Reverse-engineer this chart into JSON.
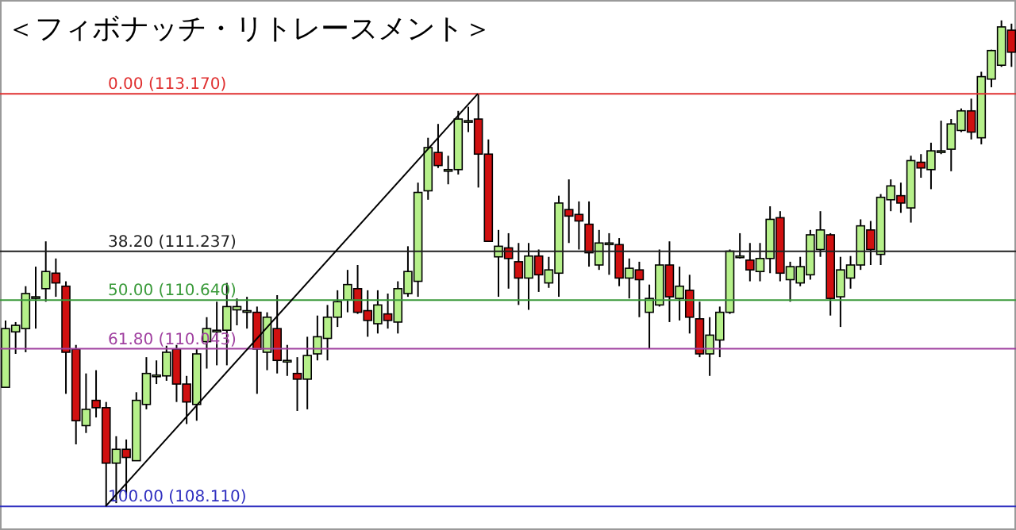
{
  "chart_data": {
    "type": "candlestick",
    "title": "＜フィボナッチ・リトレースメント＞",
    "categories": [
      null,
      null,
      null,
      null,
      null,
      null,
      null,
      null,
      null,
      null,
      null,
      null,
      null,
      null,
      null,
      null,
      null,
      null,
      null,
      null,
      null,
      null,
      null,
      null,
      null,
      null,
      null,
      null,
      null,
      null,
      null,
      null,
      null,
      null,
      null,
      null,
      null,
      null,
      null,
      null,
      null,
      null,
      null,
      null,
      null,
      null,
      null,
      null,
      null,
      null,
      null,
      null,
      null,
      null,
      null,
      null,
      null,
      null,
      null,
      null,
      null,
      null,
      null,
      null,
      null,
      null,
      null,
      null,
      null,
      null,
      null,
      null,
      null,
      null,
      null,
      null,
      null,
      null,
      null,
      null,
      null,
      null,
      null,
      null,
      null,
      null,
      null,
      null,
      null,
      null,
      null,
      null,
      null,
      null,
      null,
      null,
      null,
      null,
      null,
      null,
      null
    ],
    "ohlc": [
      [
        109.57,
        110.39,
        109.57,
        110.29
      ],
      [
        110.25,
        110.37,
        109.98,
        110.33
      ],
      [
        110.29,
        110.81,
        110.0,
        110.72
      ],
      [
        110.68,
        111.05,
        110.29,
        110.68
      ],
      [
        110.78,
        111.36,
        110.62,
        110.99
      ],
      [
        110.97,
        111.15,
        110.68,
        110.85
      ],
      [
        110.81,
        110.87,
        109.49,
        110.0
      ],
      [
        110.04,
        110.09,
        108.87,
        109.16
      ],
      [
        109.1,
        109.74,
        109.01,
        109.3
      ],
      [
        109.41,
        109.78,
        109.2,
        109.32
      ],
      [
        109.32,
        109.39,
        108.11,
        108.64
      ],
      [
        108.64,
        108.97,
        108.15,
        108.81
      ],
      [
        108.81,
        108.93,
        108.25,
        108.71
      ],
      [
        108.67,
        109.51,
        108.67,
        109.41
      ],
      [
        109.36,
        109.94,
        109.3,
        109.74
      ],
      [
        109.71,
        109.9,
        109.61,
        109.72
      ],
      [
        109.71,
        110.08,
        109.65,
        110.0
      ],
      [
        110.04,
        110.09,
        109.39,
        109.61
      ],
      [
        109.61,
        109.71,
        109.12,
        109.39
      ],
      [
        109.36,
        110.04,
        109.16,
        109.98
      ],
      [
        110.13,
        110.43,
        109.8,
        110.29
      ],
      [
        110.27,
        110.62,
        109.84,
        110.27
      ],
      [
        110.27,
        110.85,
        109.84,
        110.56
      ],
      [
        110.52,
        110.66,
        110.33,
        110.56
      ],
      [
        110.51,
        110.68,
        110.29,
        110.51
      ],
      [
        110.49,
        110.56,
        109.49,
        110.04
      ],
      [
        110.0,
        110.49,
        109.78,
        110.43
      ],
      [
        110.29,
        110.7,
        109.74,
        109.9
      ],
      [
        109.9,
        110.09,
        109.71,
        109.9
      ],
      [
        109.74,
        109.94,
        109.28,
        109.67
      ],
      [
        109.67,
        110.19,
        109.3,
        109.96
      ],
      [
        109.98,
        110.45,
        109.9,
        110.19
      ],
      [
        110.17,
        110.58,
        109.9,
        110.43
      ],
      [
        110.43,
        110.76,
        110.31,
        110.62
      ],
      [
        110.64,
        111.01,
        110.49,
        110.83
      ],
      [
        110.78,
        111.07,
        110.47,
        110.49
      ],
      [
        110.51,
        110.76,
        110.19,
        110.39
      ],
      [
        110.35,
        110.76,
        110.23,
        110.58
      ],
      [
        110.47,
        110.72,
        110.29,
        110.39
      ],
      [
        110.37,
        110.87,
        110.23,
        110.78
      ],
      [
        110.72,
        111.3,
        110.68,
        110.99
      ],
      [
        110.87,
        112.08,
        110.68,
        111.96
      ],
      [
        111.98,
        112.63,
        111.87,
        112.51
      ],
      [
        112.45,
        112.8,
        112.26,
        112.29
      ],
      [
        112.24,
        112.41,
        112.06,
        112.24
      ],
      [
        112.24,
        112.96,
        112.18,
        112.86
      ],
      [
        112.84,
        113.01,
        112.7,
        112.84
      ],
      [
        112.86,
        113.17,
        112.02,
        112.43
      ],
      [
        112.43,
        112.61,
        111.36,
        111.36
      ],
      [
        111.17,
        111.5,
        110.68,
        111.3
      ],
      [
        111.28,
        111.46,
        110.78,
        111.15
      ],
      [
        111.11,
        111.34,
        110.58,
        110.91
      ],
      [
        110.91,
        111.34,
        110.52,
        111.18
      ],
      [
        111.18,
        111.26,
        110.74,
        110.95
      ],
      [
        110.85,
        111.17,
        110.79,
        111.01
      ],
      [
        110.97,
        111.92,
        110.68,
        111.83
      ],
      [
        111.75,
        112.12,
        111.34,
        111.67
      ],
      [
        111.69,
        111.85,
        111.26,
        111.61
      ],
      [
        111.57,
        111.85,
        111.05,
        111.22
      ],
      [
        111.07,
        111.5,
        111.01,
        111.34
      ],
      [
        111.34,
        111.46,
        110.95,
        111.34
      ],
      [
        111.32,
        111.4,
        110.81,
        110.91
      ],
      [
        110.91,
        111.15,
        110.66,
        111.03
      ],
      [
        111.01,
        111.11,
        110.43,
        110.89
      ],
      [
        110.49,
        110.83,
        110.04,
        110.66
      ],
      [
        110.58,
        111.26,
        110.56,
        111.07
      ],
      [
        111.07,
        111.36,
        110.37,
        110.68
      ],
      [
        110.66,
        111.05,
        110.39,
        110.81
      ],
      [
        110.76,
        110.95,
        110.23,
        110.43
      ],
      [
        110.41,
        110.62,
        109.94,
        109.98
      ],
      [
        109.98,
        110.43,
        109.71,
        110.21
      ],
      [
        110.15,
        110.56,
        109.94,
        110.49
      ],
      [
        110.49,
        111.26,
        110.47,
        111.24
      ],
      [
        111.18,
        111.46,
        111.15,
        111.18
      ],
      [
        111.13,
        111.34,
        110.87,
        111.01
      ],
      [
        110.99,
        111.34,
        110.87,
        111.15
      ],
      [
        111.15,
        111.79,
        110.97,
        111.63
      ],
      [
        111.65,
        111.73,
        110.87,
        110.97
      ],
      [
        110.89,
        111.11,
        110.62,
        111.05
      ],
      [
        110.85,
        111.17,
        110.81,
        111.05
      ],
      [
        110.95,
        111.5,
        110.89,
        111.44
      ],
      [
        111.26,
        111.73,
        111.17,
        111.5
      ],
      [
        111.44,
        111.46,
        110.45,
        110.66
      ],
      [
        110.68,
        111.17,
        110.31,
        111.01
      ],
      [
        110.91,
        111.18,
        110.78,
        111.07
      ],
      [
        111.07,
        111.63,
        111.01,
        111.55
      ],
      [
        111.5,
        111.61,
        111.07,
        111.26
      ],
      [
        111.2,
        111.94,
        111.07,
        111.9
      ],
      [
        111.87,
        112.12,
        111.73,
        112.04
      ],
      [
        111.92,
        112.08,
        111.71,
        111.83
      ],
      [
        111.77,
        112.41,
        111.59,
        112.35
      ],
      [
        112.33,
        112.43,
        112.14,
        112.26
      ],
      [
        112.24,
        112.57,
        112.0,
        112.47
      ],
      [
        112.47,
        112.84,
        112.43,
        112.47
      ],
      [
        112.49,
        112.86,
        112.22,
        112.8
      ],
      [
        112.72,
        112.99,
        112.7,
        112.96
      ],
      [
        112.96,
        113.11,
        112.61,
        112.7
      ],
      [
        112.63,
        113.44,
        112.55,
        113.38
      ],
      [
        113.35,
        113.71,
        113.25,
        113.7
      ],
      [
        113.52,
        114.07,
        113.5,
        113.99
      ],
      [
        113.95,
        114.03,
        113.5,
        113.68
      ]
    ],
    "colors": [
      "#b6f08a",
      "#b6f08a",
      "#b6f08a",
      "#b6f08a",
      "#b6f08a",
      "#d01010",
      "#d01010",
      "#d01010",
      "#b6f08a",
      "#d01010",
      "#d01010",
      "#b6f08a",
      "#d01010",
      "#b6f08a",
      "#b6f08a",
      "#b6f08a",
      "#b6f08a",
      "#d01010",
      "#d01010",
      "#b6f08a",
      "#b6f08a",
      "#b6f08a",
      "#b6f08a",
      "#b6f08a",
      "#b6f08a",
      "#d01010",
      "#b6f08a",
      "#d01010",
      "#b6f08a",
      "#d01010",
      "#b6f08a",
      "#b6f08a",
      "#b6f08a",
      "#b6f08a",
      "#b6f08a",
      "#d01010",
      "#d01010",
      "#b6f08a",
      "#d01010",
      "#b6f08a",
      "#b6f08a",
      "#b6f08a",
      "#b6f08a",
      "#d01010",
      "#b6f08a",
      "#b6f08a",
      "#b6f08a",
      "#d01010",
      "#d01010",
      "#b6f08a",
      "#d01010",
      "#d01010",
      "#b6f08a",
      "#d01010",
      "#b6f08a",
      "#b6f08a",
      "#d01010",
      "#d01010",
      "#d01010",
      "#b6f08a",
      "#b6f08a",
      "#d01010",
      "#b6f08a",
      "#d01010",
      "#b6f08a",
      "#b6f08a",
      "#d01010",
      "#b6f08a",
      "#d01010",
      "#d01010",
      "#b6f08a",
      "#b6f08a",
      "#b6f08a",
      "#b6f08a",
      "#d01010",
      "#b6f08a",
      "#b6f08a",
      "#d01010",
      "#b6f08a",
      "#b6f08a",
      "#b6f08a",
      "#b6f08a",
      "#d01010",
      "#b6f08a",
      "#b6f08a",
      "#b6f08a",
      "#d01010",
      "#b6f08a",
      "#b6f08a",
      "#d01010",
      "#b6f08a",
      "#d01010",
      "#b6f08a",
      "#b6f08a",
      "#b6f08a",
      "#b6f08a",
      "#d01010",
      "#b6f08a",
      "#b6f08a",
      "#b6f08a",
      "#d01010"
    ],
    "series": [
      {
        "type": "line",
        "color": "#000000",
        "values": [
          null,
          null,
          null,
          null,
          null,
          null,
          null,
          null,
          null,
          null,
          108.11,
          null,
          null,
          null,
          null,
          null,
          null,
          null,
          null,
          null,
          null,
          null,
          null,
          null,
          null,
          null,
          null,
          null,
          null,
          null,
          null,
          null,
          null,
          null,
          null,
          null,
          null,
          null,
          null,
          null,
          null,
          null,
          null,
          null,
          null,
          null,
          null,
          113.17,
          null,
          null,
          null,
          null,
          null,
          null,
          null,
          null,
          null,
          null,
          null,
          null,
          null,
          null,
          null,
          null,
          null,
          null,
          null,
          null,
          null,
          null,
          null,
          null,
          null,
          null,
          null,
          null,
          null,
          null,
          null,
          null,
          null,
          null,
          null,
          null,
          null,
          null,
          null,
          null,
          null,
          null,
          null,
          null,
          null,
          null,
          null,
          null,
          null,
          null,
          null,
          null,
          null
        ]
      }
    ],
    "ylim": [
      107.82,
      114.32
    ],
    "tick_labels": false,
    "legend": false,
    "ref_lines": [
      {
        "axis": "y",
        "value": 113.17,
        "label": "0.00 (113.170)",
        "color": "#e03030"
      },
      {
        "axis": "y",
        "value": 111.237,
        "label": "38.20 (111.237)",
        "color": "#202020"
      },
      {
        "axis": "y",
        "value": 110.64,
        "label": "50.00 (110.640)",
        "color": "#3a9a3a"
      },
      {
        "axis": "y",
        "value": 110.043,
        "label": "61.80 (110.043)",
        "color": "#a040a0"
      },
      {
        "axis": "y",
        "value": 108.11,
        "label": "100.00 (108.110)",
        "color": "#3030c0"
      }
    ]
  }
}
